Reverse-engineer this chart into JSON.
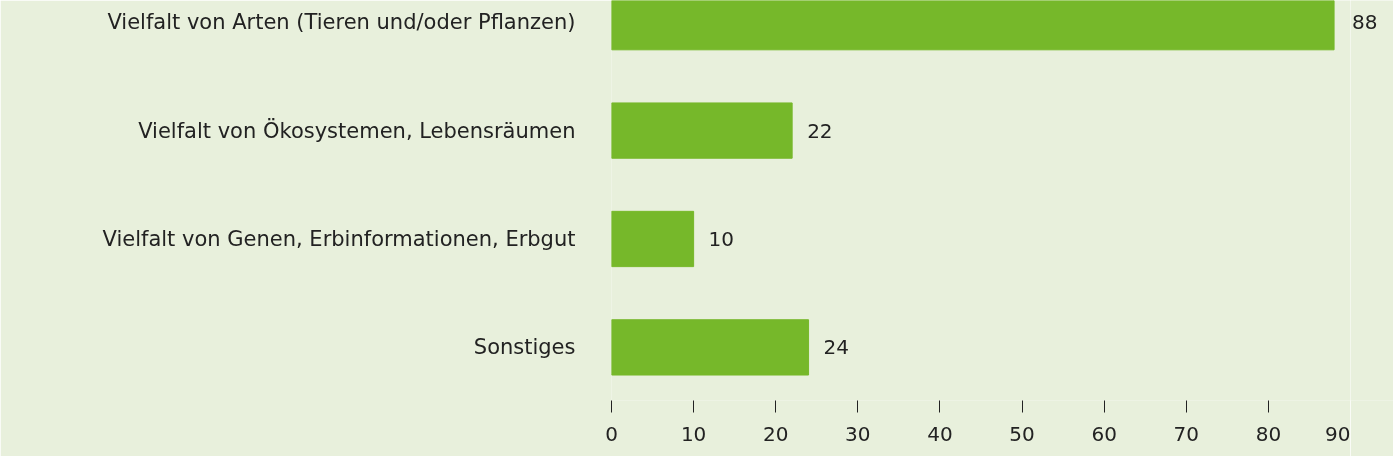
{
  "chart_data": {
    "type": "bar",
    "orientation": "horizontal",
    "categories": [
      "Vielfalt von Arten (Tieren und/oder Pflanzen)",
      "Vielfalt von Ökosystemen, Lebensräumen",
      "Vielfalt von Genen, Erbinformationen, Erbgut",
      "Sonstiges"
    ],
    "values": [
      88,
      22,
      10,
      24
    ],
    "color": "#76b82a",
    "xlim": [
      0,
      90
    ],
    "xticks": [
      0,
      10,
      20,
      30,
      40,
      50,
      60,
      70,
      80,
      90
    ],
    "data_labels": true,
    "grid": false
  }
}
